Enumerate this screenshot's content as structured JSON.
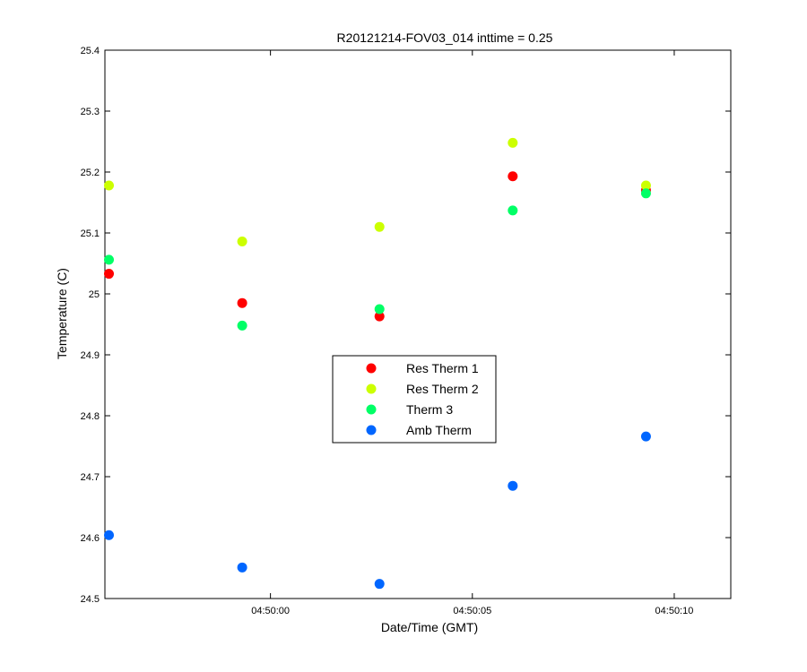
{
  "chart_data": {
    "type": "scatter",
    "title": "R20121214-FOV03_014 inttime = 0.25",
    "xlabel": "Date/Time (GMT)",
    "ylabel": "Temperature (C)",
    "xlim": [
      "04:49:55.9",
      "04:50:11.4"
    ],
    "ylim": [
      24.5,
      25.4
    ],
    "x_ticks": [
      "04:50:00",
      "04:50:05",
      "04:50:10"
    ],
    "y_ticks": [
      "24.5",
      "24.6",
      "24.7",
      "24.8",
      "24.9",
      "25",
      "25.1",
      "25.2",
      "25.3",
      "25.4"
    ],
    "grid": false,
    "legend_position": "center",
    "x": [
      "04:49:56.0",
      "04:49:59.3",
      "04:50:02.7",
      "04:50:06.0",
      "04:50:09.3"
    ],
    "series": [
      {
        "name": "Res Therm 1",
        "color": "#ff0000",
        "values": [
          25.033,
          24.985,
          24.963,
          25.193,
          25.17
        ]
      },
      {
        "name": "Res Therm 2",
        "color": "#ccff00",
        "values": [
          25.178,
          25.086,
          25.11,
          25.248,
          25.178
        ]
      },
      {
        "name": "Therm 3",
        "color": "#00ff66",
        "values": [
          25.056,
          24.948,
          24.975,
          25.137,
          25.165
        ]
      },
      {
        "name": "Amb Therm",
        "color": "#0066ff",
        "values": [
          24.604,
          24.551,
          24.524,
          24.685,
          24.766
        ]
      }
    ]
  }
}
